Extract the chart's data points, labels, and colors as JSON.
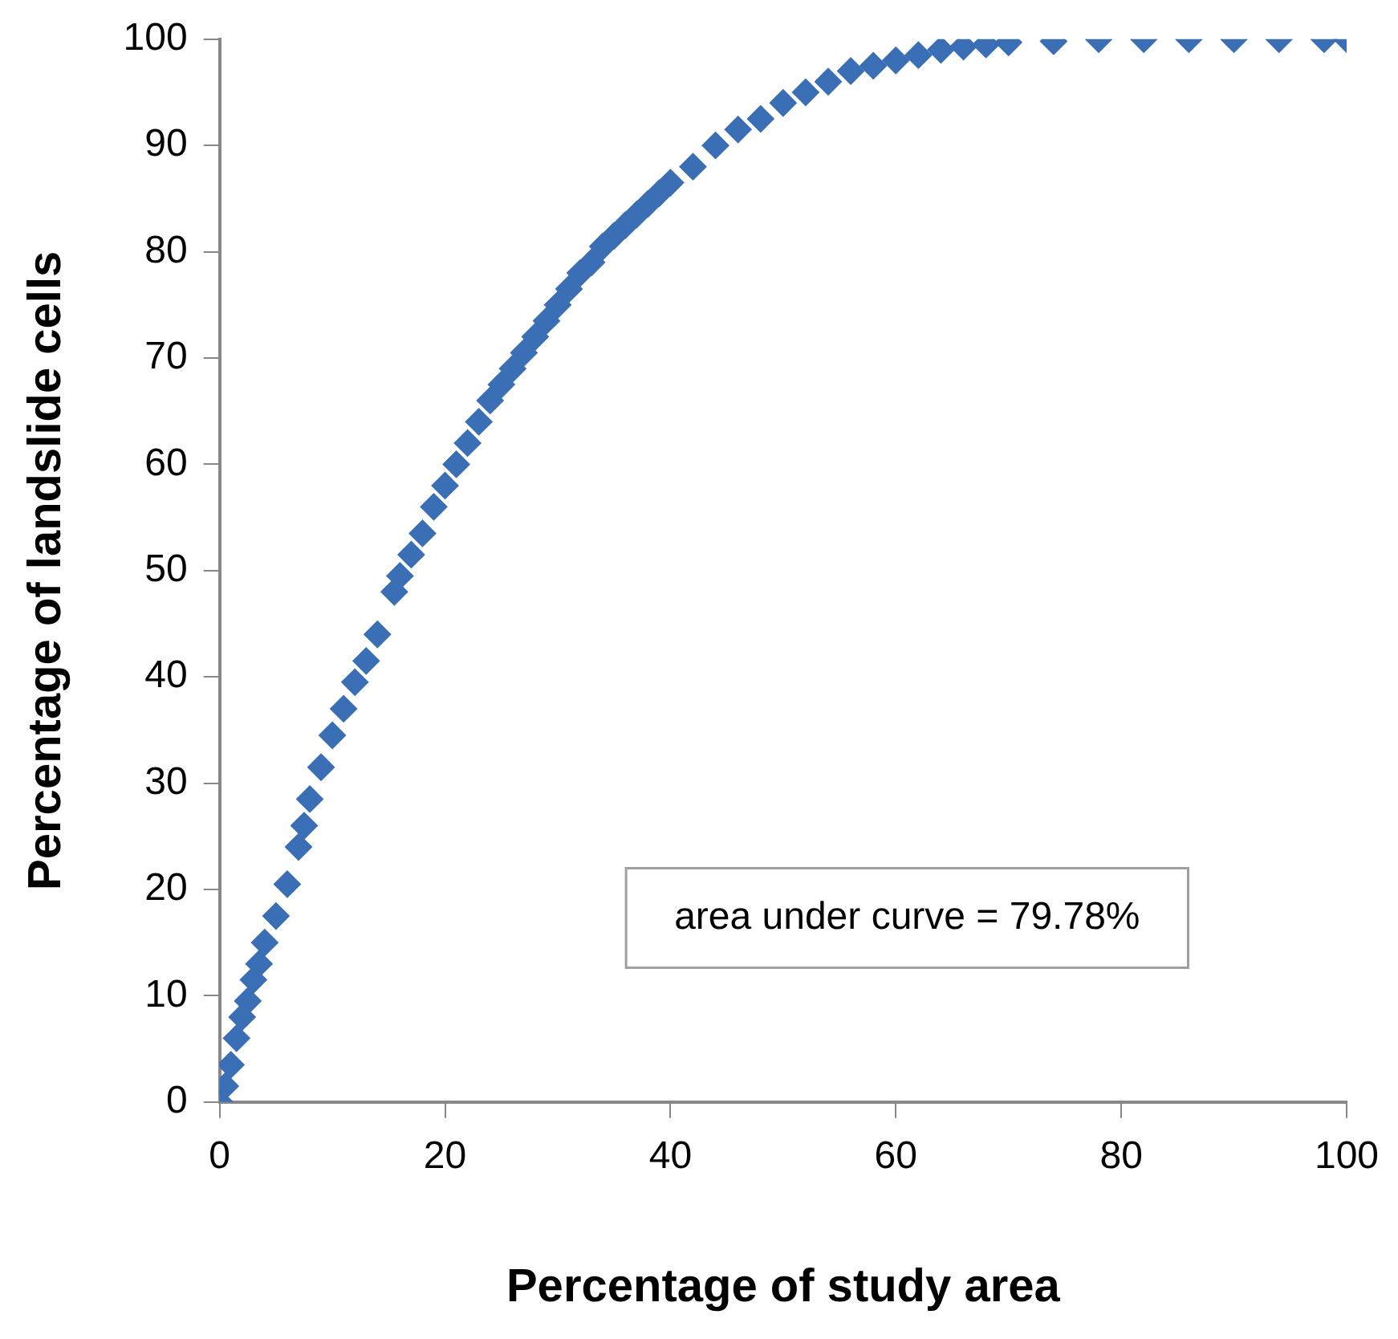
{
  "chart_data": {
    "type": "scatter",
    "xlabel": "Percentage of study area",
    "ylabel": "Percentage of landslide cells",
    "annotations": [
      "area under curve = 79.78%"
    ],
    "x": [
      0,
      0.5,
      1,
      1.5,
      2,
      2.5,
      3,
      3.5,
      4,
      5,
      6,
      7,
      7.5,
      8,
      9,
      10,
      11,
      12,
      13,
      14,
      15.5,
      16,
      17,
      18,
      19,
      20,
      21,
      22,
      23,
      24,
      25,
      26,
      27,
      28,
      29,
      30,
      31,
      32,
      33,
      34,
      35,
      36,
      37,
      38,
      39,
      40,
      42,
      44,
      46,
      48,
      50,
      52,
      54,
      56,
      58,
      60,
      62,
      64,
      66,
      68,
      70,
      74,
      78,
      82,
      86,
      90,
      94,
      98,
      100
    ],
    "series": [
      {
        "color": "#3a6fb5",
        "values": [
          0,
          1.5,
          3.5,
          6,
          8,
          9.5,
          11.5,
          13,
          15,
          17.5,
          20.5,
          24,
          26,
          28.5,
          31.5,
          34.5,
          37,
          39.5,
          41.5,
          44,
          48,
          49.5,
          51.5,
          53.5,
          56,
          58,
          60,
          62,
          64,
          66,
          67.5,
          69,
          70.5,
          72,
          73.5,
          75,
          76.5,
          78,
          79,
          80.5,
          81.5,
          82.5,
          83.5,
          84.5,
          85.5,
          86.5,
          88,
          90,
          91.5,
          92.5,
          94,
          95,
          96,
          97,
          97.5,
          98,
          98.5,
          99,
          99.3,
          99.5,
          99.7,
          99.8,
          100,
          100,
          100,
          100,
          100,
          100,
          100
        ]
      }
    ],
    "xlim": [
      0,
      100
    ],
    "xticks": [
      0,
      20,
      40,
      60,
      80,
      100
    ],
    "ylim": [
      0,
      100
    ],
    "yticks": [
      0,
      10,
      20,
      30,
      40,
      50,
      60,
      70,
      80,
      90,
      100
    ],
    "grid": false,
    "legend": false,
    "marker": "diamond"
  }
}
